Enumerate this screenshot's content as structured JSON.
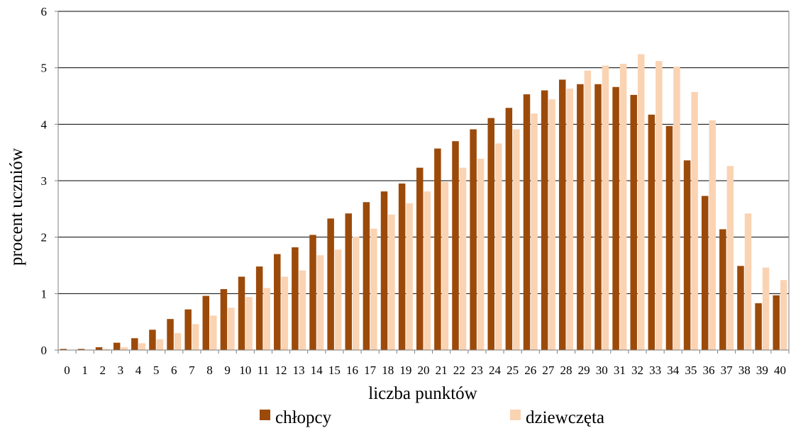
{
  "chart_data": {
    "type": "bar",
    "xlabel": "liczba punktów",
    "ylabel": "procent uczniów",
    "ylim": [
      0,
      6
    ],
    "yticks": [
      0,
      1,
      2,
      3,
      4,
      5,
      6
    ],
    "grid": true,
    "legend_position": "bottom",
    "categories": [
      "0",
      "1",
      "2",
      "3",
      "4",
      "5",
      "6",
      "7",
      "8",
      "9",
      "10",
      "11",
      "12",
      "13",
      "14",
      "15",
      "16",
      "17",
      "18",
      "19",
      "20",
      "21",
      "22",
      "23",
      "24",
      "25",
      "26",
      "27",
      "28",
      "29",
      "30",
      "31",
      "32",
      "33",
      "34",
      "35",
      "36",
      "37",
      "38",
      "39",
      "40"
    ],
    "series": [
      {
        "name": "chłopcy",
        "color": "#9C4A0A",
        "values": [
          0.02,
          0.02,
          0.05,
          0.13,
          0.21,
          0.36,
          0.55,
          0.72,
          0.96,
          1.08,
          1.3,
          1.48,
          1.7,
          1.82,
          2.04,
          2.33,
          2.42,
          2.62,
          2.81,
          2.95,
          3.23,
          3.57,
          3.7,
          3.91,
          4.11,
          4.29,
          4.53,
          4.6,
          4.79,
          4.71,
          4.71,
          4.66,
          4.52,
          4.17,
          3.97,
          3.36,
          2.73,
          2.14,
          1.49,
          0.83,
          0.97
        ]
      },
      {
        "name": "dziewczęta",
        "color": "#FAD3B3",
        "values": [
          0.0,
          0.01,
          0.02,
          0.05,
          0.12,
          0.19,
          0.3,
          0.46,
          0.61,
          0.75,
          0.94,
          1.1,
          1.3,
          1.41,
          1.68,
          1.78,
          2.01,
          2.15,
          2.4,
          2.6,
          2.81,
          2.98,
          3.23,
          3.39,
          3.66,
          3.91,
          4.19,
          4.44,
          4.63,
          4.95,
          5.04,
          5.07,
          5.24,
          5.12,
          5.02,
          4.57,
          4.07,
          3.26,
          2.42,
          1.46,
          1.24
        ]
      }
    ]
  }
}
